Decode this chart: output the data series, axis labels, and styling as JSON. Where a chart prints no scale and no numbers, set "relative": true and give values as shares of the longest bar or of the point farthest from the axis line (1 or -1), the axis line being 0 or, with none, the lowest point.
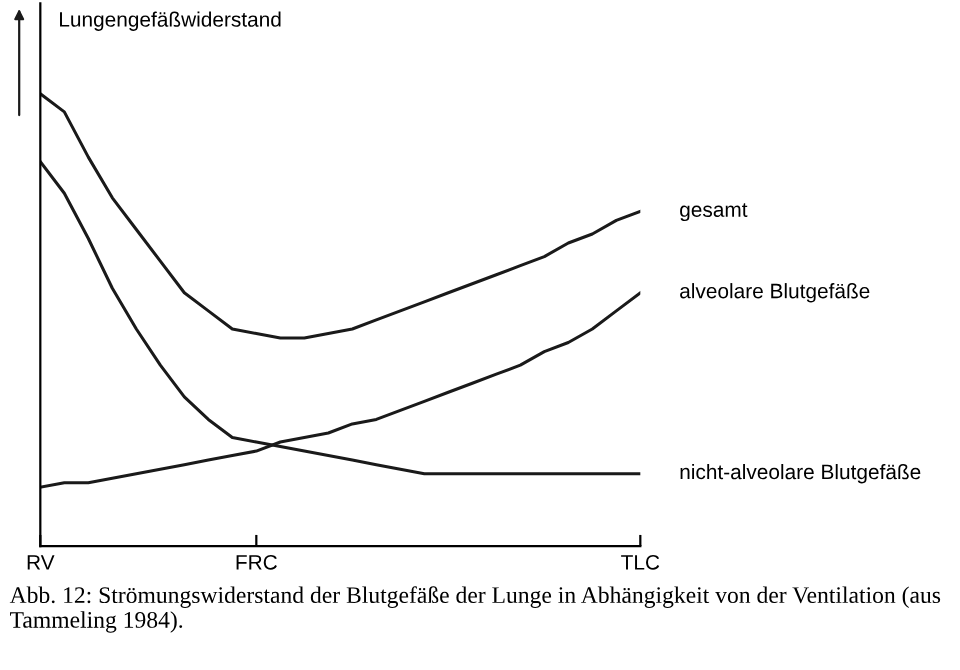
{
  "chart_data": {
    "type": "line",
    "relative": true,
    "ylabel": "Lungengefäßwiderstand",
    "categories": [
      "RV",
      null,
      null,
      null,
      null,
      null,
      null,
      null,
      null,
      "FRC",
      null,
      null,
      null,
      null,
      null,
      null,
      null,
      null,
      null,
      null,
      null,
      null,
      null,
      null,
      null,
      "TLC"
    ],
    "series": [
      {
        "name": "gesamt",
        "color": "#1a1a1a",
        "values": [
          1.0,
          0.96,
          0.86,
          0.77,
          0.7,
          0.63,
          0.56,
          0.52,
          0.48,
          0.47,
          0.46,
          0.46,
          0.47,
          0.48,
          0.5,
          0.52,
          0.54,
          0.56,
          0.58,
          0.6,
          0.62,
          0.64,
          0.67,
          0.69,
          0.72,
          0.74
        ]
      },
      {
        "name": "alveolare Blutgefäße",
        "color": "#1a1a1a",
        "values": [
          0.13,
          0.14,
          0.14,
          0.15,
          0.16,
          0.17,
          0.18,
          0.19,
          0.2,
          0.21,
          0.23,
          0.24,
          0.25,
          0.27,
          0.28,
          0.3,
          0.32,
          0.34,
          0.36,
          0.38,
          0.4,
          0.43,
          0.45,
          0.48,
          0.52,
          0.56
        ]
      },
      {
        "name": "nicht-alveolare Blutgefäße",
        "color": "#1a1a1a",
        "values": [
          0.85,
          0.78,
          0.68,
          0.57,
          0.48,
          0.4,
          0.33,
          0.28,
          0.24,
          0.23,
          0.22,
          0.21,
          0.2,
          0.19,
          0.18,
          0.17,
          0.16,
          0.16,
          0.16,
          0.16,
          0.16,
          0.16,
          0.16,
          0.16,
          0.16,
          0.16
        ]
      }
    ],
    "grid": false,
    "legend": false,
    "marker": "none",
    "line_style": "solid",
    "annotations": [
      "Abb. 12: Strömungswiderstand der Blutgefäße der Lunge in Abhängigkeit von der Ventilation (aus Tammeling 1984)."
    ]
  }
}
